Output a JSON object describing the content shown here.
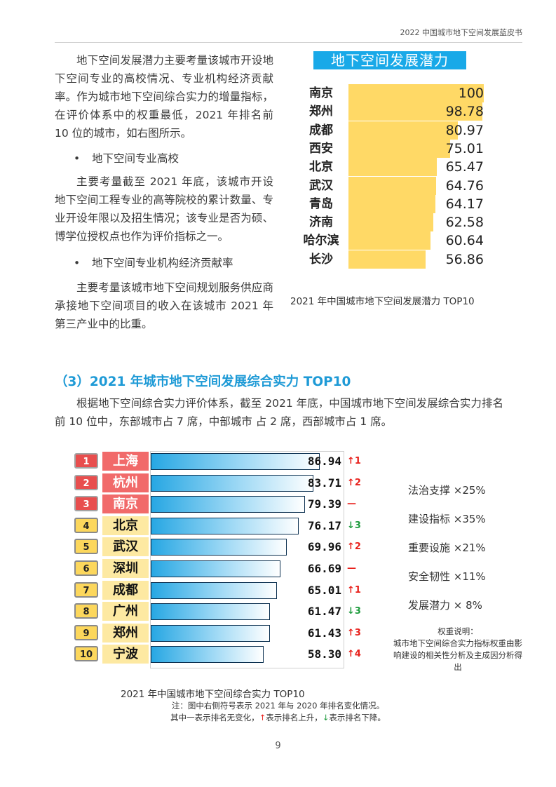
{
  "header": {
    "title": "2022 中国城市地下空间发展蓝皮书"
  },
  "intro": {
    "para1": "地下空间发展潜力主要考量该城市开设地下空间专业的高校情况、专业机构经济贡献率。作为城市地下空间综合实力的增量指标，在评价体系中的权重最低，2021 年排名前 10 位的城市，如右图所示。",
    "bullet1": "地下空间专业高校",
    "para2": "主要考量截至 2021 年底，该城市开设地下空间工程专业的高等院校的累计数量、专业开设年限以及招生情况；该专业是否为硕、博学位授权点也作为评价指标之一。",
    "bullet2": "地下空间专业机构经济贡献率",
    "para3": "主要考量该城市地下空间规划服务供应商承接地下空间项目的收入在该城市 2021 年第三产业中的比重。"
  },
  "potential_chart": {
    "title": "地下空间发展潜力",
    "caption": "2021 年中国城市地下空间发展潜力 TOP10",
    "bar_color": "#ffd966",
    "max": 100,
    "rows": [
      {
        "city": "南京",
        "value": 100,
        "label": "100"
      },
      {
        "city": "郑州",
        "value": 98.78,
        "label": "98.78"
      },
      {
        "city": "成都",
        "value": 80.97,
        "label": "80.97"
      },
      {
        "city": "西安",
        "value": 75.01,
        "label": "75.01"
      },
      {
        "city": "北京",
        "value": 65.47,
        "label": "65.47"
      },
      {
        "city": "武汉",
        "value": 64.76,
        "label": "64.76"
      },
      {
        "city": "青岛",
        "value": 64.17,
        "label": "64.17"
      },
      {
        "city": "济南",
        "value": 62.58,
        "label": "62.58"
      },
      {
        "city": "哈尔滨",
        "value": 60.64,
        "label": "60.64"
      },
      {
        "city": "长沙",
        "value": 56.86,
        "label": "56.86"
      }
    ]
  },
  "section": {
    "title": "（3）2021 年城市地下空间发展综合实力 TOP10",
    "para": "根据地下空间综合实力评价体系，截至 2021 年底，中国城市地下空间发展综合实力排名前 10 位中，东部城市占 7 席，中部城市 占 2 席，西部城市占 1 席。"
  },
  "composite_chart": {
    "caption": "2021 年中国城市地下空间综合实力 TOP10",
    "note_line1": "注：图中右侧符号表示 2021 年与 2020 年排名变化情况。",
    "note_line2_a": "其中一表示排名无变化，",
    "note_line2_up": "↑",
    "note_line2_b": "表示排名上升，",
    "note_line2_down": "↓",
    "note_line2_c": "表示排名下降。",
    "colors": {
      "top3": "#f16a6a",
      "rest": "#fde9a2",
      "up": "#e8201b",
      "down": "#1e9b3d"
    },
    "max": 100,
    "rows": [
      {
        "rank": "1",
        "city": "上海",
        "value": 86.94,
        "label": "86.94",
        "change_symbol": "↑",
        "change_num": "1",
        "dir": "up"
      },
      {
        "rank": "2",
        "city": "杭州",
        "value": 83.71,
        "label": "83.71",
        "change_symbol": "↑",
        "change_num": "2",
        "dir": "up"
      },
      {
        "rank": "3",
        "city": "南京",
        "value": 79.39,
        "label": "79.39",
        "change_symbol": "—",
        "change_num": "",
        "dir": "same"
      },
      {
        "rank": "4",
        "city": "北京",
        "value": 76.17,
        "label": "76.17",
        "change_symbol": "↓",
        "change_num": "3",
        "dir": "down"
      },
      {
        "rank": "5",
        "city": "武汉",
        "value": 69.96,
        "label": "69.96",
        "change_symbol": "↑",
        "change_num": "2",
        "dir": "up"
      },
      {
        "rank": "6",
        "city": "深圳",
        "value": 66.69,
        "label": "66.69",
        "change_symbol": "—",
        "change_num": "",
        "dir": "same"
      },
      {
        "rank": "7",
        "city": "成都",
        "value": 65.01,
        "label": "65.01",
        "change_symbol": "↑",
        "change_num": "1",
        "dir": "up"
      },
      {
        "rank": "8",
        "city": "广州",
        "value": 61.47,
        "label": "61.47",
        "change_symbol": "↓",
        "change_num": "3",
        "dir": "down"
      },
      {
        "rank": "9",
        "city": "郑州",
        "value": 61.43,
        "label": "61.43",
        "change_symbol": "↑",
        "change_num": "3",
        "dir": "up"
      },
      {
        "rank": "10",
        "city": "宁波",
        "value": 58.3,
        "label": "58.30",
        "change_symbol": "↑",
        "change_num": "4",
        "dir": "up"
      }
    ]
  },
  "weights": {
    "items": [
      "法治支撑 ×25%",
      "建设指标 ×35%",
      "重要设施 ×21%",
      "安全韧性 ×11%",
      "发展潜力 × 8%"
    ],
    "note_title": "权重说明：",
    "note_body": "城市地下空间综合实力指标权重由影响建设的相关性分析及主成因分析得出"
  },
  "page_number": "9"
}
